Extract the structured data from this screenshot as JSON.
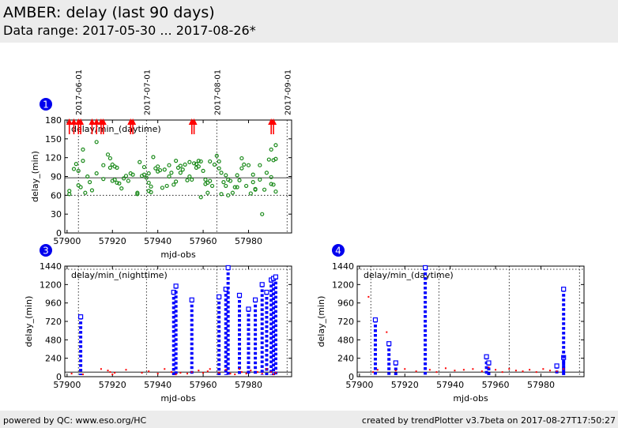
{
  "header": {
    "title": "AMBER: delay (last 90 days)",
    "subtitle": "Data range: 2017-05-30 ... 2017-08-26*"
  },
  "footer": {
    "left": "powered by QC: www.eso.org/HC",
    "right": "created by trendPlotter v3.7beta on 2017-08-27T17:50:27"
  },
  "colors": {
    "green": "#1a8a1a",
    "red": "#ff0000",
    "blue": "#0000ff",
    "badge": "#0000ee",
    "header_bg": "#ececec"
  },
  "chart_data": [
    {
      "id": "1",
      "type": "scatter",
      "title": "delay/min_(daytime)",
      "xlabel": "mjd-obs",
      "ylabel": "delay_(min)",
      "xlim": [
        57899,
        57999
      ],
      "ylim": [
        0,
        180
      ],
      "xticks": [
        57900,
        57920,
        57940,
        57960,
        57980
      ],
      "yticks": [
        0,
        30,
        60,
        90,
        120,
        150,
        180
      ],
      "ref_line": 88,
      "min_line": 60,
      "date_lines": [
        {
          "x": 57905,
          "label": "2017-06-01"
        },
        {
          "x": 57935,
          "label": "2017-07-01"
        },
        {
          "x": 57966,
          "label": "2017-08-01"
        },
        {
          "x": 57997,
          "label": "2017-09-01"
        }
      ],
      "series": [
        {
          "name": "daytime",
          "marker": "circle",
          "color": "green",
          "x": [
            57901,
            57901,
            57903,
            57904,
            57905,
            57905,
            57906,
            57907,
            57907,
            57908,
            57909,
            57910,
            57911,
            57913,
            57913,
            57916,
            57916,
            57918,
            57919,
            57919,
            57920,
            57920,
            57921,
            57921,
            57922,
            57922,
            57923,
            57924,
            57925,
            57926,
            57927,
            57928,
            57929,
            57931,
            57931,
            57932,
            57933,
            57934,
            57934,
            57935,
            57936,
            57936,
            57936,
            57937,
            57937,
            57938,
            57939,
            57940,
            57940,
            57941,
            57942,
            57943,
            57944,
            57945,
            57945,
            57946,
            57947,
            57948,
            57948,
            57949,
            57950,
            57950,
            57951,
            57952,
            57953,
            57954,
            57954,
            57955,
            57956,
            57957,
            57957,
            57958,
            57958,
            57959,
            57959,
            57960,
            57961,
            57961,
            57962,
            57962,
            57963,
            57963,
            57964,
            57965,
            57966,
            57967,
            57967,
            57968,
            57968,
            57969,
            57970,
            57970,
            57971,
            57971,
            57972,
            57973,
            57974,
            57975,
            57975,
            57976,
            57977,
            57977,
            57978,
            57979,
            57980,
            57981,
            57982,
            57982,
            57983,
            57983,
            57985,
            57985,
            57986,
            57987,
            57988,
            57989,
            57990,
            57990,
            57990,
            57991,
            57991,
            57992,
            57992,
            57992
          ],
          "y": [
            62,
            67,
            102,
            110,
            76,
            99,
            73,
            133,
            115,
            64,
            90,
            81,
            68,
            95,
            145,
            108,
            86,
            125,
            104,
            119,
            109,
            83,
            85,
            106,
            80,
            104,
            79,
            71,
            87,
            91,
            83,
            95,
            93,
            62,
            64,
            113,
            91,
            93,
            105,
            88,
            95,
            67,
            80,
            74,
            65,
            121,
            103,
            98,
            106,
            100,
            72,
            101,
            75,
            90,
            108,
            96,
            77,
            82,
            115,
            104,
            107,
            96,
            101,
            109,
            84,
            113,
            90,
            85,
            111,
            104,
            110,
            115,
            106,
            114,
            57,
            99,
            85,
            78,
            64,
            80,
            114,
            83,
            75,
            109,
            123,
            103,
            114,
            62,
            96,
            81,
            92,
            75,
            85,
            60,
            83,
            64,
            73,
            73,
            92,
            84,
            103,
            119,
            109,
            75,
            108,
            63,
            93,
            81,
            70,
            69,
            85,
            108,
            30,
            69,
            96,
            117,
            89,
            133,
            78,
            116,
            77,
            66,
            118,
            140
          ]
        },
        {
          "name": "off-scale (above 180)",
          "marker": "arrow-up",
          "color": "red",
          "x": [
            57901,
            57903,
            57905,
            57906,
            57911,
            57913,
            57915,
            57916,
            57928,
            57929,
            57955,
            57956,
            57990,
            57991
          ],
          "y": [
            180,
            180,
            180,
            180,
            180,
            180,
            180,
            180,
            180,
            180,
            180,
            180,
            180,
            180
          ]
        }
      ]
    },
    {
      "id": "3",
      "type": "scatter",
      "title": "delay/min_(nighttime)",
      "xlabel": "mjd-obs",
      "ylabel": "delay_(min)",
      "xlim": [
        57899,
        57999
      ],
      "ylim": [
        0,
        1440
      ],
      "xticks": [
        57900,
        57920,
        57940,
        57960,
        57980
      ],
      "yticks": [
        0,
        240,
        480,
        720,
        960,
        1200,
        1440
      ],
      "ref_line": 60,
      "date_lines": [
        {
          "x": 57905,
          "label": "2017-06-01"
        },
        {
          "x": 57935,
          "label": "2017-07-01"
        },
        {
          "x": 57966,
          "label": "2017-08-01"
        },
        {
          "x": 57997,
          "label": "2017-09-01"
        }
      ],
      "series": [
        {
          "name": "nighttime",
          "marker": "square",
          "color": "blue",
          "x": [
            57906,
            57947,
            57948,
            57955,
            57967,
            57970,
            57971,
            57976,
            57980,
            57983,
            57986,
            57988,
            57990,
            57991,
            57992
          ],
          "y": [
            780,
            1100,
            1180,
            1000,
            1040,
            1140,
            1420,
            1060,
            880,
            1000,
            1200,
            1100,
            1260,
            1280,
            1300
          ]
        },
        {
          "name": "nighttime-short",
          "marker": "point",
          "color": "red",
          "x": [
            57902,
            57907,
            57915,
            57918,
            57919,
            57920,
            57921,
            57926,
            57933,
            57936,
            57940,
            57943,
            57946,
            57948,
            57950,
            57953,
            57955,
            57958,
            57960,
            57962,
            57963,
            57967,
            57970,
            57972,
            57974,
            57976,
            57977,
            57979,
            57981,
            57984,
            57986,
            57988,
            57990,
            57991,
            57992
          ],
          "y": [
            40,
            30,
            100,
            80,
            60,
            30,
            50,
            90,
            50,
            70,
            40,
            100,
            60,
            30,
            50,
            40,
            60,
            80,
            50,
            70,
            100,
            50,
            90,
            40,
            30,
            100,
            60,
            40,
            80,
            60,
            40,
            100,
            60,
            30,
            50
          ]
        }
      ]
    },
    {
      "id": "4",
      "type": "scatter",
      "title": "delay/min_(daytime)",
      "xlabel": "mjd-obs",
      "ylabel": "delay_(min)",
      "xlim": [
        57899,
        57999
      ],
      "ylim": [
        0,
        1440
      ],
      "xticks": [
        57900,
        57920,
        57940,
        57960,
        57980
      ],
      "yticks": [
        0,
        240,
        480,
        720,
        960,
        1200,
        1440
      ],
      "ref_line": 60,
      "date_lines": [
        {
          "x": 57905,
          "label": "2017-06-01"
        },
        {
          "x": 57935,
          "label": "2017-07-01"
        },
        {
          "x": 57966,
          "label": "2017-08-01"
        },
        {
          "x": 57997,
          "label": "2017-09-01"
        }
      ],
      "series": [
        {
          "name": "daytime",
          "marker": "square",
          "color": "blue",
          "x": [
            57907,
            57913,
            57916,
            57929,
            57956,
            57957,
            57987,
            57990,
            57990
          ],
          "y": [
            740,
            430,
            180,
            1420,
            260,
            180,
            140,
            250,
            1140
          ]
        },
        {
          "name": "daytime-short",
          "marker": "point",
          "color": "red",
          "x": [
            57904,
            57906,
            57908,
            57912,
            57916,
            57920,
            57925,
            57931,
            57934,
            57938,
            57942,
            57946,
            57950,
            57954,
            57957,
            57960,
            57963,
            57966,
            57969,
            57972,
            57975,
            57978,
            57981,
            57984,
            57987,
            57990
          ],
          "y": [
            1040,
            60,
            90,
            580,
            80,
            100,
            70,
            90,
            60,
            110,
            80,
            90,
            100,
            70,
            120,
            90,
            60,
            100,
            80,
            70,
            90,
            60,
            100,
            80,
            70,
            100
          ]
        }
      ]
    }
  ]
}
